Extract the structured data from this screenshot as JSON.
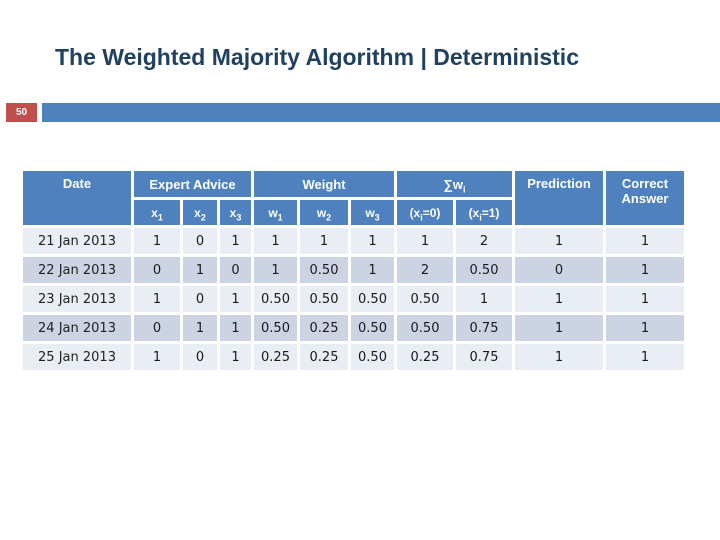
{
  "slide": {
    "title": "The Weighted Majority Algorithm | Deterministic",
    "page_number": "50"
  },
  "colors": {
    "header_blue": "#4e81bd",
    "accent_bar_blue": "#4f81bd",
    "badge_red": "#c0504d",
    "row_light": "#e9edf4",
    "row_dark": "#ccd3e2",
    "title_navy": "#20415f"
  },
  "table": {
    "headers": {
      "date": "Date",
      "expert_advice": "Expert Advice",
      "weight": "Weight",
      "sum": {
        "base": "∑w",
        "sub": "i"
      },
      "prediction": "Prediction",
      "correct_answer": "Correct Answer",
      "expert_cols": [
        {
          "base": "x",
          "sub": "1"
        },
        {
          "base": "x",
          "sub": "2"
        },
        {
          "base": "x",
          "sub": "3"
        }
      ],
      "weight_cols": [
        {
          "base": "w",
          "sub": "1"
        },
        {
          "base": "w",
          "sub": "2"
        },
        {
          "base": "w",
          "sub": "3"
        }
      ],
      "sum_cols": [
        {
          "pre": "(x",
          "sub": "i",
          "post": "=0)"
        },
        {
          "pre": "(x",
          "sub": "i",
          "post": "=1)"
        }
      ]
    },
    "rows": [
      {
        "date": "21 Jan 2013",
        "x": [
          "1",
          "0",
          "1"
        ],
        "w": [
          "1",
          "1",
          "1"
        ],
        "sum": [
          "1",
          "2"
        ],
        "prediction": "1",
        "correct": "1"
      },
      {
        "date": "22 Jan 2013",
        "x": [
          "0",
          "1",
          "0"
        ],
        "w": [
          "1",
          "0.50",
          "1"
        ],
        "sum": [
          "2",
          "0.50"
        ],
        "prediction": "0",
        "correct": "1"
      },
      {
        "date": "23 Jan 2013",
        "x": [
          "1",
          "0",
          "1"
        ],
        "w": [
          "0.50",
          "0.50",
          "0.50"
        ],
        "sum": [
          "0.50",
          "1"
        ],
        "prediction": "1",
        "correct": "1"
      },
      {
        "date": "24 Jan 2013",
        "x": [
          "0",
          "1",
          "1"
        ],
        "w": [
          "0.50",
          "0.25",
          "0.50"
        ],
        "sum": [
          "0.50",
          "0.75"
        ],
        "prediction": "1",
        "correct": "1"
      },
      {
        "date": "25 Jan 2013",
        "x": [
          "1",
          "0",
          "1"
        ],
        "w": [
          "0.25",
          "0.25",
          "0.50"
        ],
        "sum": [
          "0.25",
          "0.75"
        ],
        "prediction": "1",
        "correct": "1"
      }
    ]
  }
}
